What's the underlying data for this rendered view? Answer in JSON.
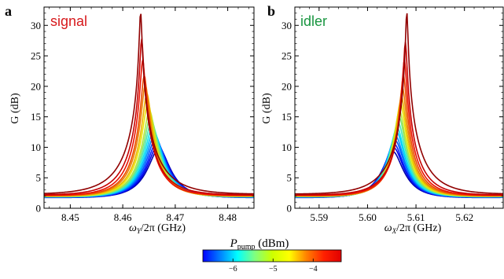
{
  "colorbar": {
    "label_main": "P",
    "label_sub": "pump",
    "label_unit": " (dBm)",
    "range": [
      -6.75,
      -3.3
    ],
    "ticks": [
      -6,
      -5,
      -4
    ],
    "tick_labels": [
      "−6",
      "−5",
      "−4"
    ]
  },
  "chart_data": [
    {
      "panel": "a",
      "type": "line",
      "trace_label": "signal",
      "trace_label_color": "#d7191c",
      "xlabel_main": "ω",
      "xlabel_sub": "Y",
      "xlabel_rest": "/2π (GHz)",
      "ylabel": "G (dB)",
      "xlim": [
        8.445,
        8.485
      ],
      "ylim": [
        0,
        33
      ],
      "x_ticks": [
        8.45,
        8.46,
        8.47,
        8.48
      ],
      "x_tick_labels": [
        "8.45",
        "8.46",
        "8.47",
        "8.48"
      ],
      "y_ticks": [
        0,
        5,
        10,
        15,
        20,
        25,
        30
      ],
      "y_tick_labels": [
        "0",
        "5",
        "10",
        "15",
        "20",
        "25",
        "30"
      ],
      "series_model": "lorentzian",
      "series": [
        {
          "pump_dBm": -6.6,
          "peak_x": 8.4669,
          "peak_gain": 9.0,
          "base_gain": 2.0
        },
        {
          "pump_dBm": -6.4,
          "peak_x": 8.4667,
          "peak_gain": 9.5,
          "base_gain": 2.1
        },
        {
          "pump_dBm": -6.2,
          "peak_x": 8.4665,
          "peak_gain": 10.0,
          "base_gain": 2.1
        },
        {
          "pump_dBm": -6.0,
          "peak_x": 8.4663,
          "peak_gain": 10.6,
          "base_gain": 2.2
        },
        {
          "pump_dBm": -5.8,
          "peak_x": 8.4661,
          "peak_gain": 11.2,
          "base_gain": 2.2
        },
        {
          "pump_dBm": -5.6,
          "peak_x": 8.4659,
          "peak_gain": 11.8,
          "base_gain": 2.3
        },
        {
          "pump_dBm": -5.4,
          "peak_x": 8.4657,
          "peak_gain": 12.5,
          "base_gain": 2.3
        },
        {
          "pump_dBm": -5.2,
          "peak_x": 8.4655,
          "peak_gain": 13.3,
          "base_gain": 2.4
        },
        {
          "pump_dBm": -5.0,
          "peak_x": 8.4653,
          "peak_gain": 14.2,
          "base_gain": 2.4
        },
        {
          "pump_dBm": -4.8,
          "peak_x": 8.4651,
          "peak_gain": 15.2,
          "base_gain": 2.5
        },
        {
          "pump_dBm": -4.6,
          "peak_x": 8.4648,
          "peak_gain": 16.5,
          "base_gain": 2.5
        },
        {
          "pump_dBm": -4.4,
          "peak_x": 8.4646,
          "peak_gain": 18.0,
          "base_gain": 2.6
        },
        {
          "pump_dBm": -4.2,
          "peak_x": 8.4643,
          "peak_gain": 19.5,
          "base_gain": 2.6
        },
        {
          "pump_dBm": -4.0,
          "peak_x": 8.4641,
          "peak_gain": 21.0,
          "base_gain": 2.7
        },
        {
          "pump_dBm": -3.8,
          "peak_x": 8.4638,
          "peak_gain": 23.5,
          "base_gain": 2.7
        },
        {
          "pump_dBm": -3.6,
          "peak_x": 8.4636,
          "peak_gain": 27.0,
          "base_gain": 2.8
        },
        {
          "pump_dBm": -3.4,
          "peak_x": 8.4634,
          "peak_gain": 31.5,
          "base_gain": 2.8
        }
      ]
    },
    {
      "panel": "b",
      "type": "line",
      "trace_label": "idler",
      "trace_label_color": "#1a9641",
      "xlabel_main": "ω",
      "xlabel_sub": "X",
      "xlabel_rest": "/2π (GHz)",
      "ylabel": "G (dB)",
      "xlim": [
        5.585,
        5.628
      ],
      "ylim": [
        0,
        33
      ],
      "x_ticks": [
        5.59,
        5.6,
        5.61,
        5.62
      ],
      "x_tick_labels": [
        "5.59",
        "5.60",
        "5.61",
        "5.62"
      ],
      "y_ticks": [
        0,
        5,
        10,
        15,
        20,
        25,
        30
      ],
      "y_tick_labels": [
        "0",
        "5",
        "10",
        "15",
        "20",
        "25",
        "30"
      ],
      "series_model": "lorentzian",
      "series": [
        {
          "pump_dBm": -6.6,
          "peak_x": 5.6052,
          "peak_gain": 8.5,
          "base_gain": 2.0
        },
        {
          "pump_dBm": -6.4,
          "peak_x": 5.6054,
          "peak_gain": 9.1,
          "base_gain": 2.1
        },
        {
          "pump_dBm": -6.2,
          "peak_x": 5.6055,
          "peak_gain": 9.7,
          "base_gain": 2.1
        },
        {
          "pump_dBm": -6.0,
          "peak_x": 5.6057,
          "peak_gain": 10.3,
          "base_gain": 2.2
        },
        {
          "pump_dBm": -5.8,
          "peak_x": 5.6058,
          "peak_gain": 11.0,
          "base_gain": 2.2
        },
        {
          "pump_dBm": -5.6,
          "peak_x": 5.606,
          "peak_gain": 11.7,
          "base_gain": 2.3
        },
        {
          "pump_dBm": -5.4,
          "peak_x": 5.6061,
          "peak_gain": 12.4,
          "base_gain": 2.3
        },
        {
          "pump_dBm": -5.2,
          "peak_x": 5.6063,
          "peak_gain": 13.3,
          "base_gain": 2.4
        },
        {
          "pump_dBm": -5.0,
          "peak_x": 5.6065,
          "peak_gain": 14.2,
          "base_gain": 2.4
        },
        {
          "pump_dBm": -4.8,
          "peak_x": 5.6066,
          "peak_gain": 15.2,
          "base_gain": 2.5
        },
        {
          "pump_dBm": -4.6,
          "peak_x": 5.6068,
          "peak_gain": 16.5,
          "base_gain": 2.5
        },
        {
          "pump_dBm": -4.4,
          "peak_x": 5.607,
          "peak_gain": 17.5,
          "base_gain": 2.6
        },
        {
          "pump_dBm": -4.2,
          "peak_x": 5.6072,
          "peak_gain": 19.0,
          "base_gain": 2.6
        },
        {
          "pump_dBm": -4.0,
          "peak_x": 5.6074,
          "peak_gain": 21.0,
          "base_gain": 2.7
        },
        {
          "pump_dBm": -3.8,
          "peak_x": 5.6076,
          "peak_gain": 23.5,
          "base_gain": 2.7
        },
        {
          "pump_dBm": -3.6,
          "peak_x": 5.6078,
          "peak_gain": 26.5,
          "base_gain": 2.8
        },
        {
          "pump_dBm": -3.4,
          "peak_x": 5.6081,
          "peak_gain": 31.5,
          "base_gain": 2.8
        }
      ]
    }
  ]
}
